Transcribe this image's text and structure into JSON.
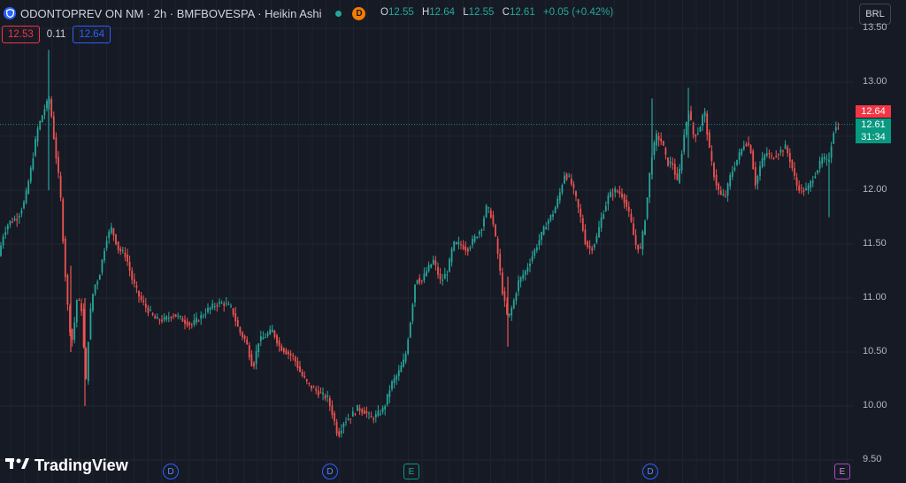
{
  "header": {
    "symbol_title": "ODONTOPREV ON NM · 2h · BMFBOVESPA · Heikin Ashi",
    "logo_icon": "shield-icon",
    "market_status_icon": "green-dot-icon",
    "dividend_badge": "D",
    "ohlc": {
      "o_label": "O",
      "o_value": "12.55",
      "h_label": "H",
      "h_value": "12.64",
      "l_label": "L",
      "l_value": "12.55",
      "c_label": "C",
      "c_value": "12.61",
      "change": "+0.05 (+0.42%)"
    }
  },
  "trade": {
    "sell_price": "12.53",
    "spread": "0.11",
    "buy_price": "12.64"
  },
  "currency": "BRL",
  "price_tags": {
    "ask": "12.64",
    "last": "12.61",
    "countdown": "31:34"
  },
  "branding": {
    "name": "TradingView",
    "logo_icon": "tradingview-logo-icon"
  },
  "events": [
    {
      "label": "D",
      "type": "dividend"
    },
    {
      "label": "D",
      "type": "dividend"
    },
    {
      "label": "E",
      "type": "earnings"
    },
    {
      "label": "D",
      "type": "dividend"
    },
    {
      "label": "E",
      "type": "earnings"
    }
  ],
  "colors": {
    "up": "#26a69a",
    "down": "#ef5350",
    "background": "#161a25",
    "grid": "#1f232e"
  },
  "chart_data": {
    "type": "candlestick",
    "style": "Heikin Ashi",
    "y_ticks": [
      "13.50",
      "13.00",
      "12.50",
      "12.00",
      "11.50",
      "11.00",
      "10.50",
      "10.00",
      "9.50"
    ],
    "ylim": [
      9.5,
      13.5
    ],
    "grid": true,
    "current_price": 12.61,
    "path": [
      [
        0,
        11.45
      ],
      [
        4,
        11.6
      ],
      [
        10,
        11.7
      ],
      [
        20,
        11.75
      ],
      [
        28,
        11.9
      ],
      [
        35,
        12.2
      ],
      [
        42,
        12.55
      ],
      [
        50,
        12.75
      ],
      [
        56,
        12.85
      ],
      [
        62,
        12.4
      ],
      [
        68,
        12.0
      ],
      [
        73,
        11.3
      ],
      [
        78,
        10.75
      ],
      [
        82,
        10.6
      ],
      [
        87,
        11.0
      ],
      [
        92,
        10.9
      ],
      [
        97,
        10.2
      ],
      [
        101,
        10.8
      ],
      [
        106,
        11.1
      ],
      [
        112,
        11.2
      ],
      [
        120,
        11.55
      ],
      [
        126,
        11.65
      ],
      [
        134,
        11.45
      ],
      [
        142,
        11.4
      ],
      [
        150,
        11.15
      ],
      [
        158,
        11.0
      ],
      [
        166,
        10.9
      ],
      [
        176,
        10.8
      ],
      [
        186,
        10.8
      ],
      [
        196,
        10.85
      ],
      [
        206,
        10.8
      ],
      [
        216,
        10.75
      ],
      [
        226,
        10.82
      ],
      [
        236,
        10.9
      ],
      [
        246,
        10.95
      ],
      [
        254,
        10.95
      ],
      [
        262,
        10.9
      ],
      [
        270,
        10.7
      ],
      [
        278,
        10.6
      ],
      [
        286,
        10.35
      ],
      [
        292,
        10.6
      ],
      [
        300,
        10.65
      ],
      [
        308,
        10.7
      ],
      [
        316,
        10.55
      ],
      [
        324,
        10.5
      ],
      [
        332,
        10.45
      ],
      [
        340,
        10.3
      ],
      [
        348,
        10.2
      ],
      [
        356,
        10.15
      ],
      [
        364,
        10.1
      ],
      [
        370,
        10.08
      ],
      [
        376,
        9.92
      ],
      [
        382,
        9.72
      ],
      [
        388,
        9.85
      ],
      [
        396,
        9.9
      ],
      [
        404,
        9.98
      ],
      [
        412,
        9.95
      ],
      [
        420,
        9.88
      ],
      [
        428,
        9.93
      ],
      [
        434,
        9.98
      ],
      [
        442,
        10.2
      ],
      [
        450,
        10.3
      ],
      [
        458,
        10.45
      ],
      [
        464,
        10.8
      ],
      [
        470,
        11.2
      ],
      [
        476,
        11.15
      ],
      [
        482,
        11.25
      ],
      [
        490,
        11.35
      ],
      [
        498,
        11.15
      ],
      [
        506,
        11.25
      ],
      [
        512,
        11.5
      ],
      [
        520,
        11.5
      ],
      [
        528,
        11.45
      ],
      [
        536,
        11.55
      ],
      [
        544,
        11.65
      ],
      [
        550,
        11.85
      ],
      [
        556,
        11.75
      ],
      [
        562,
        11.45
      ],
      [
        568,
        11.05
      ],
      [
        574,
        10.8
      ],
      [
        580,
        10.95
      ],
      [
        586,
        11.15
      ],
      [
        594,
        11.25
      ],
      [
        602,
        11.4
      ],
      [
        610,
        11.55
      ],
      [
        618,
        11.7
      ],
      [
        626,
        11.8
      ],
      [
        632,
        11.95
      ],
      [
        638,
        12.15
      ],
      [
        644,
        12.1
      ],
      [
        650,
        11.95
      ],
      [
        656,
        11.75
      ],
      [
        662,
        11.5
      ],
      [
        668,
        11.45
      ],
      [
        674,
        11.55
      ],
      [
        680,
        11.75
      ],
      [
        688,
        11.95
      ],
      [
        696,
        12.0
      ],
      [
        704,
        11.95
      ],
      [
        712,
        11.75
      ],
      [
        718,
        11.5
      ],
      [
        724,
        11.45
      ],
      [
        730,
        11.8
      ],
      [
        736,
        12.3
      ],
      [
        742,
        12.5
      ],
      [
        748,
        12.45
      ],
      [
        754,
        12.25
      ],
      [
        760,
        12.25
      ],
      [
        766,
        12.05
      ],
      [
        772,
        12.45
      ],
      [
        778,
        12.75
      ],
      [
        784,
        12.5
      ],
      [
        790,
        12.55
      ],
      [
        796,
        12.75
      ],
      [
        802,
        12.35
      ],
      [
        808,
        12.1
      ],
      [
        814,
        11.95
      ],
      [
        820,
        11.95
      ],
      [
        826,
        12.15
      ],
      [
        834,
        12.3
      ],
      [
        842,
        12.45
      ],
      [
        848,
        12.4
      ],
      [
        854,
        12.05
      ],
      [
        860,
        12.25
      ],
      [
        866,
        12.35
      ],
      [
        872,
        12.3
      ],
      [
        880,
        12.35
      ],
      [
        888,
        12.4
      ],
      [
        894,
        12.25
      ],
      [
        900,
        12.05
      ],
      [
        906,
        12.0
      ],
      [
        912,
        12.0
      ],
      [
        918,
        12.1
      ],
      [
        924,
        12.2
      ],
      [
        930,
        12.3
      ],
      [
        936,
        12.25
      ],
      [
        942,
        12.55
      ],
      [
        948,
        12.61
      ]
    ],
    "spikes": [
      {
        "x": 55,
        "low": 12.0,
        "high": 13.3
      },
      {
        "x": 80,
        "low": 10.5,
        "high": 11.3
      },
      {
        "x": 96,
        "low": 10.0,
        "high": 11.0
      },
      {
        "x": 574,
        "low": 10.55,
        "high": 11.2
      },
      {
        "x": 737,
        "low": 12.1,
        "high": 12.85
      },
      {
        "x": 778,
        "low": 12.3,
        "high": 12.95
      },
      {
        "x": 937,
        "low": 11.75,
        "high": 12.35
      }
    ]
  }
}
